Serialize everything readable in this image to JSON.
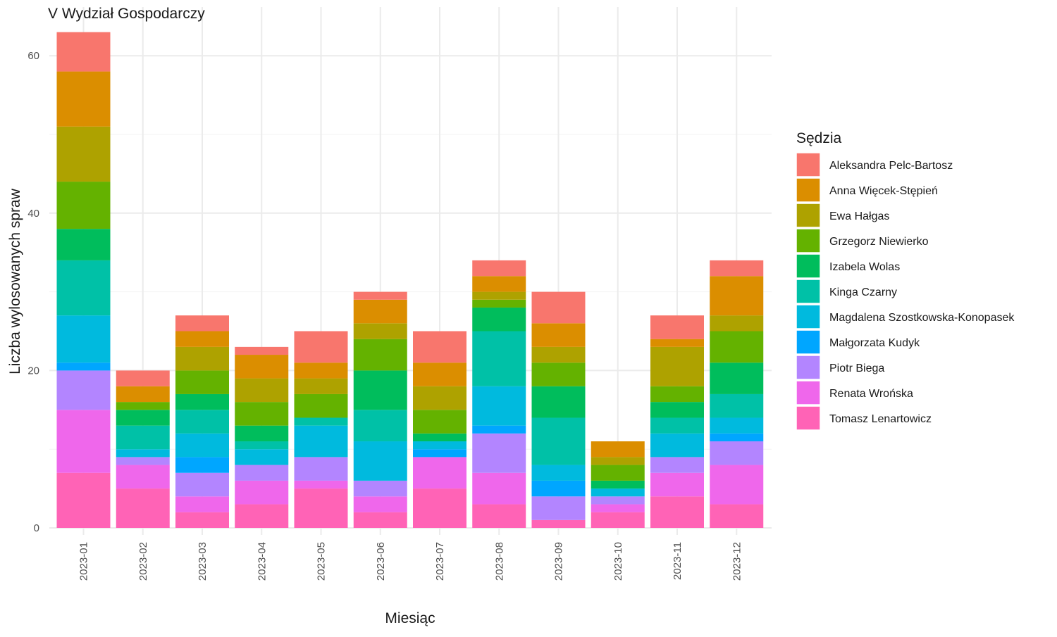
{
  "chart_data": {
    "type": "bar",
    "stacked": true,
    "title": "V Wydział Gospodarczy",
    "xlabel": "Miesiąc",
    "ylabel": "Liczba wylosowanych spraw",
    "ylim": [
      0,
      63
    ],
    "yticks": [
      0,
      20,
      40,
      60
    ],
    "grid": true,
    "legend_title": "Sędzia",
    "legend_position": "right",
    "categories": [
      "2023-01",
      "2023-02",
      "2023-03",
      "2023-04",
      "2023-05",
      "2023-06",
      "2023-07",
      "2023-08",
      "2023-09",
      "2023-10",
      "2023-11",
      "2023-12"
    ],
    "series": [
      {
        "name": "Aleksandra Pelc-Bartosz",
        "color": "#F8766D",
        "values": [
          5,
          2,
          2,
          1,
          4,
          1,
          4,
          2,
          4,
          0,
          3,
          2
        ]
      },
      {
        "name": "Anna Więcek-Stępień",
        "color": "#DB8E00",
        "values": [
          7,
          2,
          2,
          3,
          2,
          3,
          3,
          2,
          3,
          2,
          1,
          5
        ]
      },
      {
        "name": "Ewa Hałgas",
        "color": "#AEA200",
        "values": [
          7,
          0,
          3,
          3,
          2,
          2,
          3,
          1,
          2,
          1,
          5,
          2
        ]
      },
      {
        "name": "Grzegorz Niewierko",
        "color": "#64B200",
        "values": [
          6,
          1,
          3,
          3,
          3,
          4,
          3,
          1,
          3,
          2,
          2,
          4
        ]
      },
      {
        "name": "Izabela Wolas",
        "color": "#00BD5C",
        "values": [
          4,
          2,
          2,
          2,
          0,
          5,
          1,
          3,
          4,
          1,
          2,
          4
        ]
      },
      {
        "name": "Kinga Czarny",
        "color": "#00C1A7",
        "values": [
          7,
          3,
          3,
          1,
          1,
          4,
          0,
          7,
          6,
          0,
          2,
          3
        ]
      },
      {
        "name": "Magdalena Szostkowska-Konopasek",
        "color": "#00BADE",
        "values": [
          6,
          1,
          3,
          2,
          4,
          5,
          1,
          5,
          2,
          1,
          3,
          2
        ]
      },
      {
        "name": "Małgorzata Kudyk",
        "color": "#00A6FF",
        "values": [
          1,
          0,
          2,
          0,
          0,
          0,
          1,
          1,
          2,
          0,
          0,
          1
        ]
      },
      {
        "name": "Piotr Biega",
        "color": "#B385FF",
        "values": [
          5,
          1,
          3,
          2,
          3,
          2,
          0,
          5,
          3,
          1,
          2,
          3
        ]
      },
      {
        "name": "Renata Wrońska",
        "color": "#EF67EB",
        "values": [
          8,
          3,
          2,
          3,
          1,
          2,
          4,
          4,
          0,
          1,
          3,
          5
        ]
      },
      {
        "name": "Tomasz Lenartowicz",
        "color": "#FF63B6",
        "values": [
          7,
          5,
          2,
          3,
          5,
          2,
          5,
          3,
          1,
          2,
          4,
          3
        ]
      }
    ]
  }
}
